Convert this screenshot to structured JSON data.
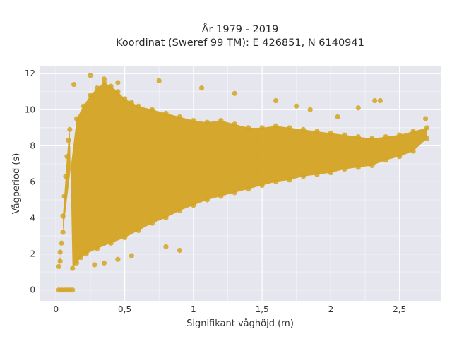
{
  "chart_data": {
    "type": "scatter",
    "title": "År 1979 - 2019",
    "subtitle": "Koordinat (Sweref 99 TM): E 426851, N 6140941",
    "xlabel": "Signifikant våghöjd (m)",
    "ylabel": "Vågperiod (s)",
    "xlim": [
      -0.12,
      2.8
    ],
    "ylim": [
      -0.6,
      12.4
    ],
    "x_ticks": [
      0,
      0.5,
      1,
      1.5,
      2,
      2.5
    ],
    "x_tick_labels": [
      "0",
      "0,5",
      "1",
      "1,5",
      "2",
      "2,5"
    ],
    "y_ticks": [
      0,
      2,
      4,
      6,
      8,
      10,
      12
    ],
    "y_tick_labels": [
      "0",
      "2",
      "4",
      "6",
      "8",
      "10",
      "12"
    ],
    "grid": true,
    "colors": {
      "marker": "#D4A422",
      "plot_background": "#E6E6EF",
      "grid": "#FFFFFF"
    },
    "series": [
      {
        "points": [
          [
            0.02,
            0
          ],
          [
            0.04,
            0
          ],
          [
            0.06,
            0
          ],
          [
            0.08,
            0
          ],
          [
            0.1,
            0
          ],
          [
            0.12,
            0
          ],
          [
            0.02,
            1.3
          ],
          [
            0.03,
            1.6
          ],
          [
            0.03,
            2.1
          ],
          [
            0.04,
            2.6
          ],
          [
            0.05,
            3.2
          ],
          [
            0.05,
            4.1
          ],
          [
            0.06,
            5.2
          ],
          [
            0.07,
            6.3
          ],
          [
            0.08,
            7.4
          ],
          [
            0.09,
            8.3
          ],
          [
            0.1,
            8.9
          ],
          [
            0.12,
            1.2
          ],
          [
            0.15,
            1.5
          ],
          [
            0.18,
            1.8
          ],
          [
            0.22,
            2.0
          ],
          [
            0.3,
            2.3
          ],
          [
            0.4,
            2.6
          ],
          [
            0.5,
            2.9
          ],
          [
            0.6,
            3.3
          ],
          [
            0.7,
            3.7
          ],
          [
            0.8,
            4.0
          ],
          [
            0.9,
            4.4
          ],
          [
            1.0,
            4.7
          ],
          [
            1.1,
            5.0
          ],
          [
            1.2,
            5.2
          ],
          [
            1.3,
            5.4
          ],
          [
            1.4,
            5.6
          ],
          [
            1.5,
            5.8
          ],
          [
            1.6,
            6.0
          ],
          [
            1.7,
            6.1
          ],
          [
            1.8,
            6.3
          ],
          [
            1.9,
            6.4
          ],
          [
            2.0,
            6.5
          ],
          [
            2.1,
            6.7
          ],
          [
            2.2,
            6.8
          ],
          [
            2.3,
            6.9
          ],
          [
            2.4,
            7.2
          ],
          [
            2.5,
            7.4
          ],
          [
            2.6,
            7.7
          ],
          [
            2.7,
            8.4
          ],
          [
            0.15,
            9.5
          ],
          [
            0.2,
            10.2
          ],
          [
            0.25,
            10.8
          ],
          [
            0.3,
            11.2
          ],
          [
            0.35,
            11.5
          ],
          [
            0.4,
            11.3
          ],
          [
            0.45,
            11.0
          ],
          [
            0.5,
            10.6
          ],
          [
            0.55,
            10.4
          ],
          [
            0.6,
            10.2
          ],
          [
            0.7,
            10.0
          ],
          [
            0.8,
            9.8
          ],
          [
            0.9,
            9.6
          ],
          [
            1.0,
            9.4
          ],
          [
            1.1,
            9.3
          ],
          [
            1.2,
            9.4
          ],
          [
            1.3,
            9.2
          ],
          [
            1.4,
            9.0
          ],
          [
            1.5,
            9.0
          ],
          [
            1.6,
            9.1
          ],
          [
            1.7,
            9.0
          ],
          [
            1.8,
            8.9
          ],
          [
            1.9,
            8.8
          ],
          [
            2.0,
            8.7
          ],
          [
            2.1,
            8.6
          ],
          [
            2.2,
            8.5
          ],
          [
            2.3,
            8.4
          ],
          [
            2.4,
            8.5
          ],
          [
            2.5,
            8.6
          ],
          [
            2.6,
            8.8
          ],
          [
            2.7,
            9.0
          ],
          [
            0.13,
            11.4
          ],
          [
            0.25,
            11.9
          ],
          [
            0.35,
            11.7
          ],
          [
            0.45,
            11.5
          ],
          [
            0.75,
            11.6
          ],
          [
            1.06,
            11.2
          ],
          [
            1.3,
            10.9
          ],
          [
            1.6,
            10.5
          ],
          [
            1.75,
            10.2
          ],
          [
            1.85,
            10.0
          ],
          [
            2.05,
            9.6
          ],
          [
            2.2,
            10.1
          ],
          [
            2.32,
            10.5
          ],
          [
            2.36,
            10.5
          ],
          [
            2.69,
            9.5
          ],
          [
            0.8,
            2.4
          ],
          [
            0.9,
            2.2
          ],
          [
            0.55,
            1.9
          ],
          [
            0.45,
            1.7
          ],
          [
            0.35,
            1.5
          ],
          [
            0.28,
            1.4
          ]
        ]
      }
    ]
  }
}
